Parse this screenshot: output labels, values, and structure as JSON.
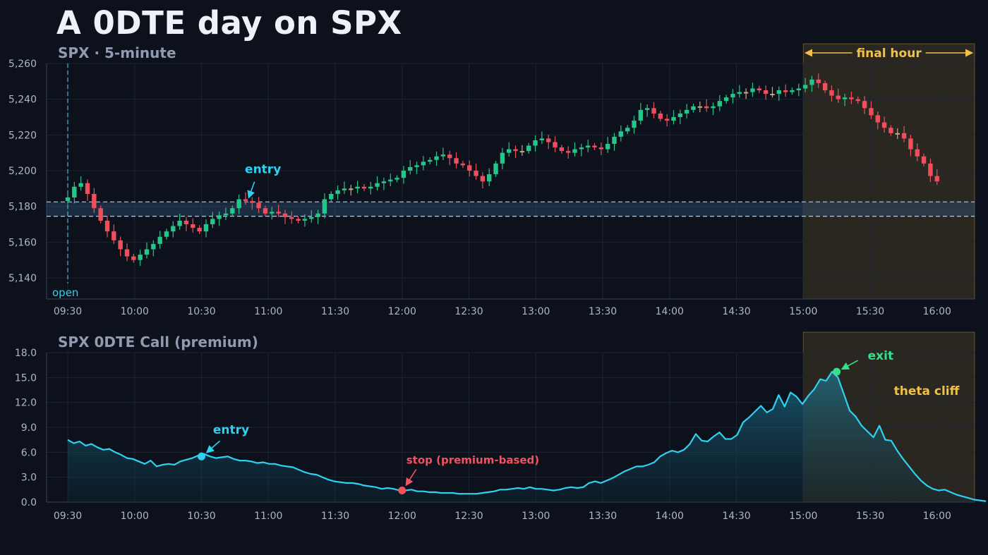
{
  "title": "A 0DTE day on SPX",
  "colors": {
    "background": "#0c111b",
    "grid": "#1c2433",
    "axis_text": "#aeb7c6",
    "bull": "#26c58a",
    "bear": "#ef4f5c",
    "doji": "#c8a887",
    "premium_line": "#2fd1f0",
    "entry": "#2fd1f0",
    "stop": "#f05260",
    "exit": "#35e08a",
    "final_hour_highlight": "#f0c048",
    "zone": "#3a5d88"
  },
  "chart_data": [
    {
      "type": "candlestick",
      "subtitle": "SPX · 5-minute",
      "xlim": [
        "09:30",
        "16:00"
      ],
      "x_ticks": [
        "09:30",
        "10:00",
        "10:30",
        "11:00",
        "11:30",
        "12:00",
        "12:30",
        "13:00",
        "13:30",
        "14:00",
        "14:30",
        "15:00",
        "15:30",
        "16:00"
      ],
      "ylim": [
        5140,
        5260
      ],
      "y_ticks": [
        "5,140",
        "5,160",
        "5,180",
        "5,200",
        "5,220",
        "5,240",
        "5,260"
      ],
      "grid": true,
      "annotations": {
        "open_label": "open",
        "open_time": "09:30",
        "entry_label": "entry",
        "entry_time": "10:50",
        "entry_price": 5182,
        "zone_low": 5174.5,
        "zone_high": 5182.5,
        "final_hour_label": "final hour",
        "final_hour_start": "15:00"
      },
      "closes": [
        5185,
        5191,
        5193,
        5187,
        5179,
        5172,
        5166,
        5161,
        5156,
        5152,
        5150,
        5153,
        5156,
        5159,
        5163,
        5166,
        5169,
        5172,
        5170,
        5168,
        5166,
        5170,
        5173,
        5175,
        5176,
        5179,
        5184,
        5183,
        5182,
        5179,
        5176,
        5177,
        5176,
        5174,
        5173,
        5172,
        5173,
        5174,
        5176,
        5184,
        5187,
        5189,
        5190,
        5190,
        5191,
        5190,
        5191,
        5193,
        5194,
        5195,
        5196,
        5200,
        5202,
        5203,
        5205,
        5206,
        5208,
        5209,
        5207,
        5204,
        5203,
        5200,
        5197,
        5194,
        5198,
        5204,
        5210,
        5212,
        5211,
        5211,
        5214,
        5217,
        5218,
        5216,
        5213,
        5211,
        5210,
        5212,
        5213,
        5214,
        5213,
        5212,
        5215,
        5219,
        5222,
        5224,
        5228,
        5234,
        5235,
        5232,
        5229,
        5228,
        5230,
        5232,
        5234,
        5236,
        5236,
        5235,
        5236,
        5239,
        5241,
        5243,
        5244,
        5244,
        5246,
        5245,
        5243,
        5243,
        5245,
        5244,
        5245,
        5246,
        5248,
        5251,
        5249,
        5245,
        5242,
        5240,
        5241,
        5240,
        5239,
        5235,
        5231,
        5227,
        5224,
        5221,
        5221,
        5218,
        5212,
        5208,
        5204,
        5197,
        5194
      ]
    },
    {
      "type": "area",
      "subtitle": "SPX 0DTE Call (premium)",
      "xlim": [
        "09:30",
        "16:00"
      ],
      "x_ticks": [
        "09:30",
        "10:00",
        "10:30",
        "11:00",
        "11:30",
        "12:00",
        "12:30",
        "13:00",
        "13:30",
        "14:00",
        "14:30",
        "15:00",
        "15:30",
        "16:00"
      ],
      "ylim": [
        0,
        18
      ],
      "y_ticks": [
        "0.0",
        "3.0",
        "6.0",
        "9.0",
        "12.0",
        "15.0",
        "18.0"
      ],
      "grid": true,
      "annotations": {
        "entry_label": "entry",
        "entry_time": "10:30",
        "entry_value": 5.5,
        "stop_label": "stop (premium-based)",
        "stop_time": "12:00",
        "stop_value": 1.4,
        "exit_label": "exit",
        "exit_time": "15:15",
        "exit_value": 15.7,
        "region_label": "theta cliff",
        "region_start": "15:00"
      },
      "values": [
        7.5,
        7.1,
        7.3,
        6.8,
        7.0,
        6.6,
        6.3,
        6.4,
        6.0,
        5.7,
        5.3,
        5.2,
        4.9,
        4.6,
        5.0,
        4.3,
        4.5,
        4.6,
        4.5,
        4.9,
        5.1,
        5.3,
        5.6,
        5.8,
        5.5,
        5.3,
        5.4,
        5.5,
        5.2,
        5.0,
        5.0,
        4.9,
        4.7,
        4.8,
        4.6,
        4.6,
        4.4,
        4.3,
        4.2,
        3.9,
        3.6,
        3.4,
        3.3,
        3.0,
        2.7,
        2.5,
        2.4,
        2.3,
        2.3,
        2.2,
        2.0,
        1.9,
        1.8,
        1.6,
        1.7,
        1.6,
        1.4,
        1.4,
        1.5,
        1.3,
        1.3,
        1.2,
        1.2,
        1.1,
        1.1,
        1.1,
        1.0,
        1.0,
        1.0,
        1.0,
        1.1,
        1.2,
        1.3,
        1.5,
        1.5,
        1.6,
        1.7,
        1.6,
        1.8,
        1.6,
        1.6,
        1.5,
        1.4,
        1.5,
        1.7,
        1.8,
        1.7,
        1.8,
        2.3,
        2.5,
        2.3,
        2.6,
        2.9,
        3.3,
        3.7,
        4.0,
        4.3,
        4.3,
        4.5,
        4.8,
        5.5,
        5.9,
        6.2,
        6.0,
        6.3,
        7.0,
        8.2,
        7.4,
        7.3,
        7.9,
        8.4,
        7.6,
        7.6,
        8.1,
        9.6,
        10.2,
        10.9,
        11.6,
        10.8,
        11.2,
        12.9,
        11.5,
        13.2,
        12.7,
        11.8,
        12.8,
        13.6,
        14.8,
        14.6,
        15.7,
        15.0,
        13.0,
        11.0,
        10.3,
        9.2,
        8.5,
        7.8,
        9.2,
        7.5,
        7.4,
        6.2,
        5.2,
        4.3,
        3.4,
        2.6,
        2.0,
        1.6,
        1.4,
        1.5,
        1.2,
        0.9,
        0.7,
        0.5,
        0.3,
        0.2,
        0.1
      ]
    }
  ]
}
